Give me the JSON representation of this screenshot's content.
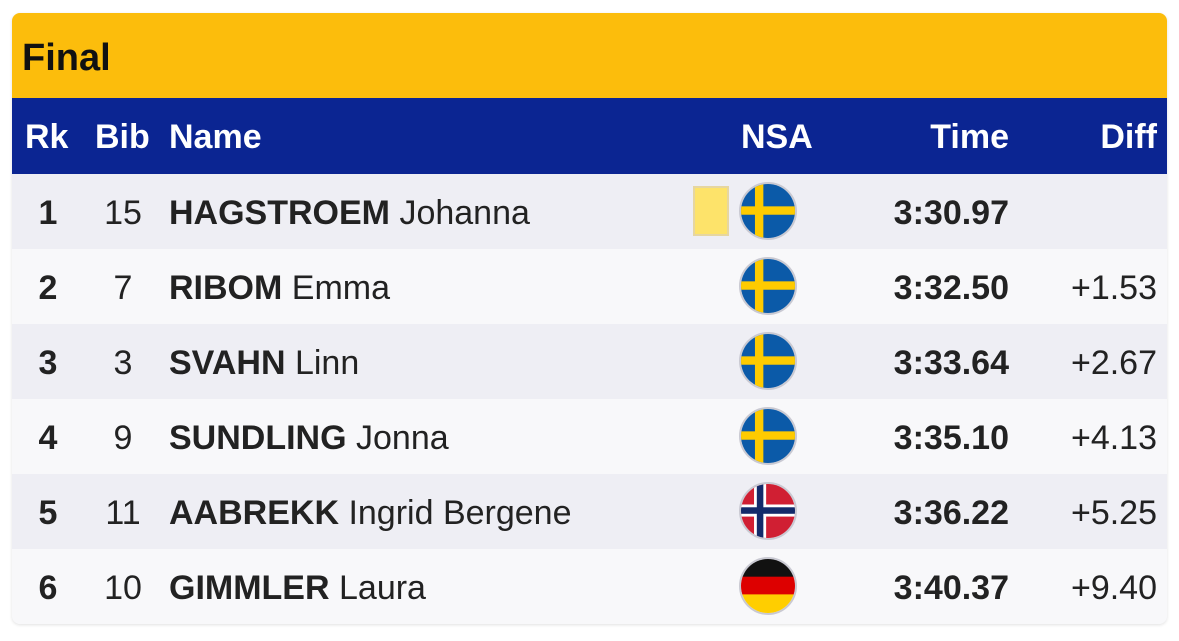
{
  "title": "Final",
  "columns": {
    "rk": "Rk",
    "bib": "Bib",
    "name": "Name",
    "nsa": "NSA",
    "time": "Time",
    "diff": "Diff"
  },
  "rows": [
    {
      "rk": "1",
      "bib": "15",
      "surname": "HAGSTROEM",
      "given": "Johanna",
      "nsa": "swe-flag-icon",
      "time": "3:30.97",
      "diff": ""
    },
    {
      "rk": "2",
      "bib": "7",
      "surname": "RIBOM",
      "given": "Emma",
      "nsa": "swe-flag-icon",
      "time": "3:32.50",
      "diff": "+1.53"
    },
    {
      "rk": "3",
      "bib": "3",
      "surname": "SVAHN",
      "given": "Linn",
      "nsa": "swe-flag-icon",
      "time": "3:33.64",
      "diff": "+2.67"
    },
    {
      "rk": "4",
      "bib": "9",
      "surname": "SUNDLING",
      "given": "Jonna",
      "nsa": "swe-flag-icon",
      "time": "3:35.10",
      "diff": "+4.13"
    },
    {
      "rk": "5",
      "bib": "11",
      "surname": "AABREKK",
      "given": "Ingrid Bergene",
      "nsa": "nor-flag-icon",
      "time": "3:36.22",
      "diff": "+5.25"
    },
    {
      "rk": "6",
      "bib": "10",
      "surname": "GIMMLER",
      "given": "Laura",
      "nsa": "ger-flag-icon",
      "time": "3:40.37",
      "diff": "+9.40"
    }
  ],
  "colors": {
    "title_bar": "#fcbd0c",
    "header": "#0b2592",
    "leader_bib": "#fde36a"
  }
}
